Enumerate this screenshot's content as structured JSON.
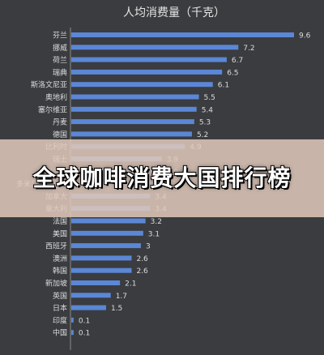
{
  "chart_data": {
    "type": "bar",
    "orientation": "horizontal",
    "title": "人均消费量（千克）",
    "categories": [
      "芬兰",
      "挪威",
      "荷兰",
      "瑞典",
      "斯洛文尼亚",
      "奥地利",
      "塞尔维亚",
      "丹麦",
      "德国",
      "比利时",
      "瑞士",
      "克罗地亚",
      "多米尼加共和国",
      "加拿大",
      "意大利",
      "法国",
      "美国",
      "西班牙",
      "澳洲",
      "韩国",
      "新加坡",
      "英国",
      "日本",
      "印度",
      "中国"
    ],
    "values": [
      9.6,
      7.2,
      6.7,
      6.5,
      6.1,
      5.5,
      5.4,
      5.3,
      5.2,
      4.9,
      3.9,
      3.9,
      3.6,
      3.4,
      3.4,
      3.2,
      3.1,
      3,
      2.6,
      2.6,
      2.1,
      1.7,
      1.5,
      0.1,
      0.1
    ],
    "xlim": [
      0,
      10
    ],
    "grid": false,
    "bar_color": "#5b87d6"
  },
  "banner": {
    "title": "全球咖啡消费大国排行榜"
  }
}
